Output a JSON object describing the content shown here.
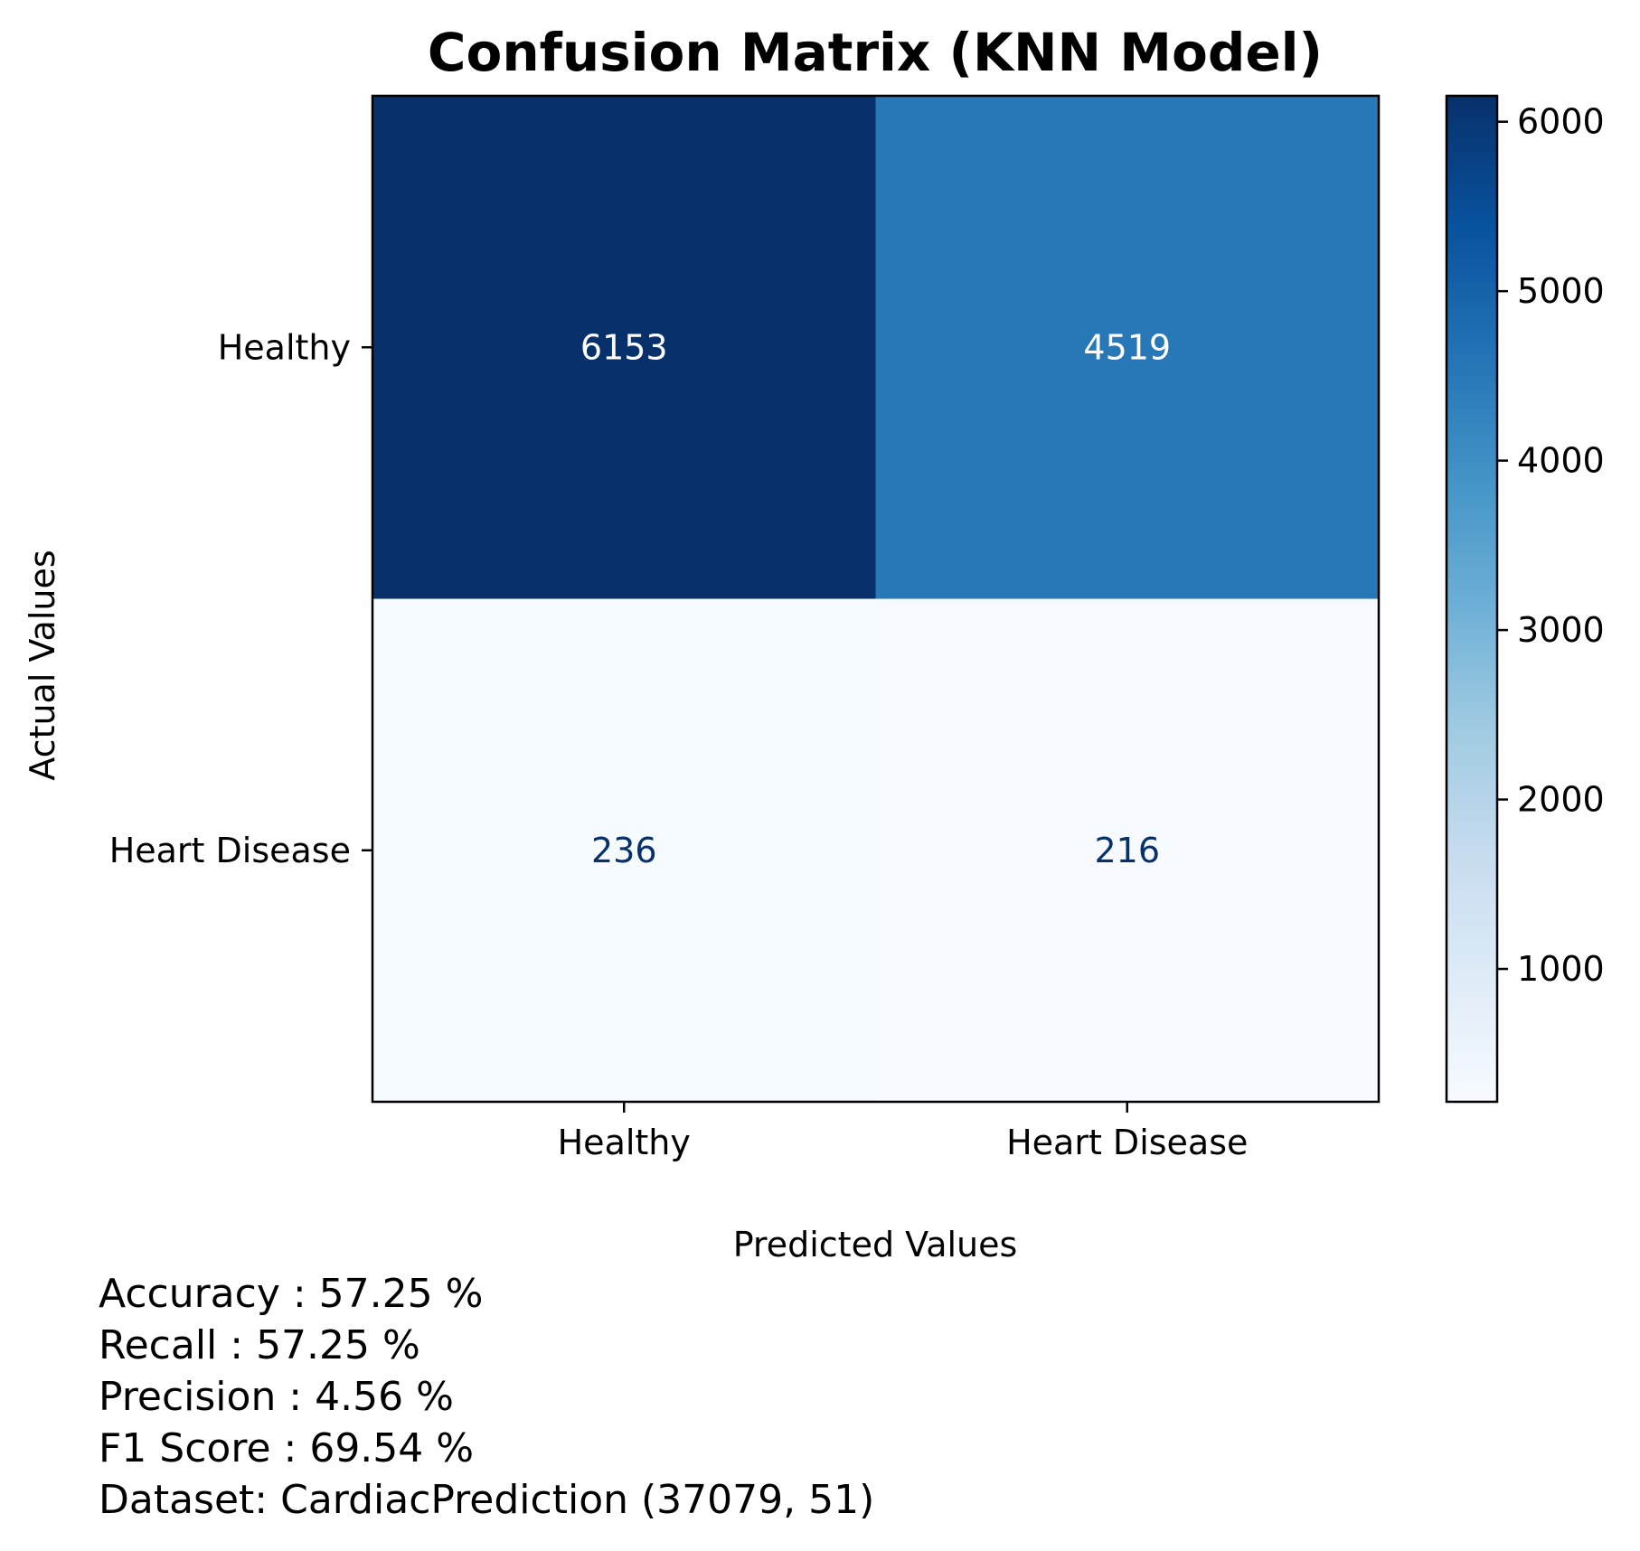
{
  "chart_data": {
    "type": "heatmap",
    "title": "Confusion Matrix (KNN Model)",
    "xlabel": "Predicted Values",
    "ylabel": "Actual Values",
    "x_categories": [
      "Healthy",
      "Heart Disease"
    ],
    "y_categories": [
      "Healthy",
      "Heart Disease"
    ],
    "matrix": [
      [
        6153,
        4519
      ],
      [
        236,
        216
      ]
    ],
    "colormap": "Blues",
    "colorbar": {
      "min": 216,
      "max": 6153,
      "ticks": [
        1000,
        2000,
        3000,
        4000,
        5000,
        6000
      ]
    },
    "grid": false
  },
  "metrics": [
    "Accuracy : 57.25 %",
    "Recall : 57.25 %",
    "Precision : 4.56 %",
    "F1 Score : 69.54 %",
    "Dataset: CardiacPrediction (37079, 51)"
  ]
}
